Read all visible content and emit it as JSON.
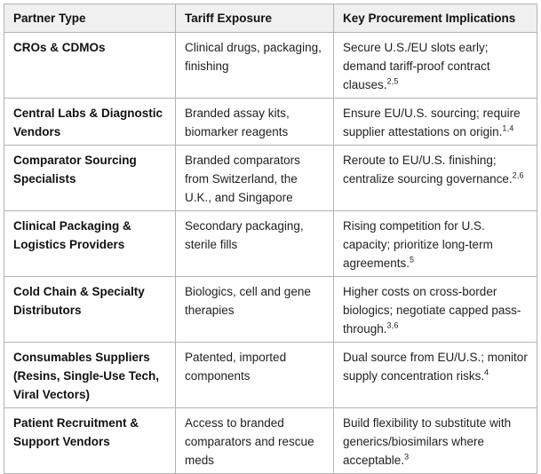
{
  "colors": {
    "header_bg": "#f0f0f0",
    "border": "#b3b3b3",
    "text": "#1f1f1f"
  },
  "table": {
    "columns": {
      "partner_type": "Partner Type",
      "tariff_exposure": "Tariff Exposure",
      "implications": "Key Procurement Implications"
    },
    "rows": [
      {
        "partner_type": "CROs & CDMOs",
        "tariff_exposure": "Clinical drugs, packaging, finishing",
        "implication": "Secure U.S./EU slots early; demand tariff-proof contract clauses.",
        "refs": "2,5"
      },
      {
        "partner_type": "Central Labs & Diagnostic Vendors",
        "tariff_exposure": "Branded assay kits, biomarker reagents",
        "implication": "Ensure EU/U.S. sourcing; require supplier attestations on origin.",
        "refs": "1,4"
      },
      {
        "partner_type": "Comparator Sourcing Specialists",
        "tariff_exposure": "Branded comparators from Switzerland, the U.K., and Singapore",
        "implication": "Reroute to EU/U.S. finishing; centralize sourcing governance.",
        "refs": "2,6"
      },
      {
        "partner_type": "Clinical Packaging & Logistics Providers",
        "tariff_exposure": "Secondary packaging, sterile fills",
        "implication": "Rising competition for U.S. capacity; prioritize long-term agreements.",
        "refs": "5"
      },
      {
        "partner_type": "Cold Chain & Specialty Distributors",
        "tariff_exposure": "Biologics, cell and gene therapies",
        "implication": "Higher costs on cross-border biologics; negotiate capped pass-through.",
        "refs": "3,6"
      },
      {
        "partner_type": "Consumables Suppliers (Resins, Single-Use Tech, Viral Vectors)",
        "tariff_exposure": "Patented, imported components",
        "implication": "Dual source from EU/U.S.; monitor supply concentration risks.",
        "refs": "4"
      },
      {
        "partner_type": "Patient Recruitment & Support Vendors",
        "tariff_exposure": "Access to branded comparators and rescue meds",
        "implication": "Build flexibility to substitute with generics/biosimilars where acceptable.",
        "refs": "3"
      }
    ]
  }
}
